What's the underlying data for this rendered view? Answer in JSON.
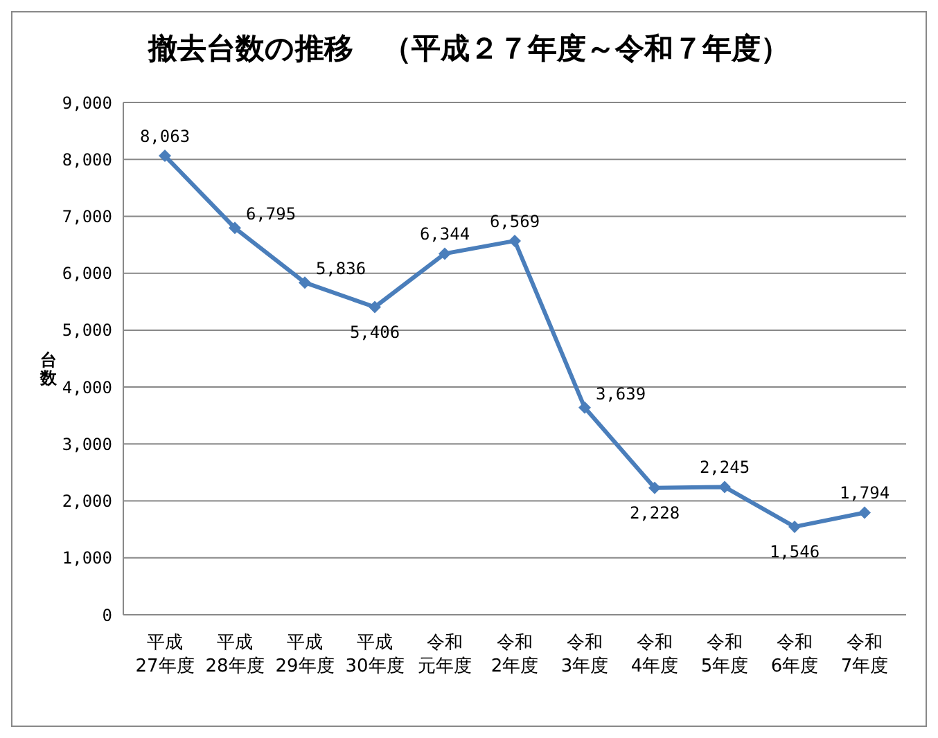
{
  "chart_data": {
    "type": "line",
    "title": "撤去台数の推移　（平成２７年度～令和７年度）",
    "ylabel": "台数",
    "categories": [
      "平成27年度",
      "平成28年度",
      "平成29年度",
      "平成30年度",
      "令和元年度",
      "令和2年度",
      "令和3年度",
      "令和4年度",
      "令和5年度",
      "令和6年度",
      "令和7年度"
    ],
    "series": [
      {
        "color": "#4a7ebb",
        "values": [
          8063,
          6795,
          5836,
          5406,
          6344,
          6569,
          3639,
          2228,
          2245,
          1546,
          1794
        ],
        "value_labels": [
          "8,063",
          "6,795",
          "5,836",
          "5,406",
          "6,344",
          "6,569",
          "3,639",
          "2,228",
          "2,245",
          "1,546",
          "1,794"
        ]
      }
    ],
    "ylim": [
      0,
      9000
    ],
    "yticks": [
      0,
      {
        "value": 1000,
        "label": "1,000"
      },
      {
        "value": 2000,
        "label": "2,000"
      },
      {
        "value": 3000,
        "label": "3,000"
      },
      {
        "value": 4000,
        "label": "4,000"
      },
      {
        "value": 5000,
        "label": "5,000"
      },
      {
        "value": 6000,
        "label": "6,000"
      },
      {
        "value": 7000,
        "label": "7,000"
      },
      {
        "value": 8000,
        "label": "8,000"
      },
      {
        "value": 9000,
        "label": "9,000"
      }
    ],
    "grid": "y",
    "legend": false,
    "marker": "diamond",
    "line_style": "solid"
  }
}
